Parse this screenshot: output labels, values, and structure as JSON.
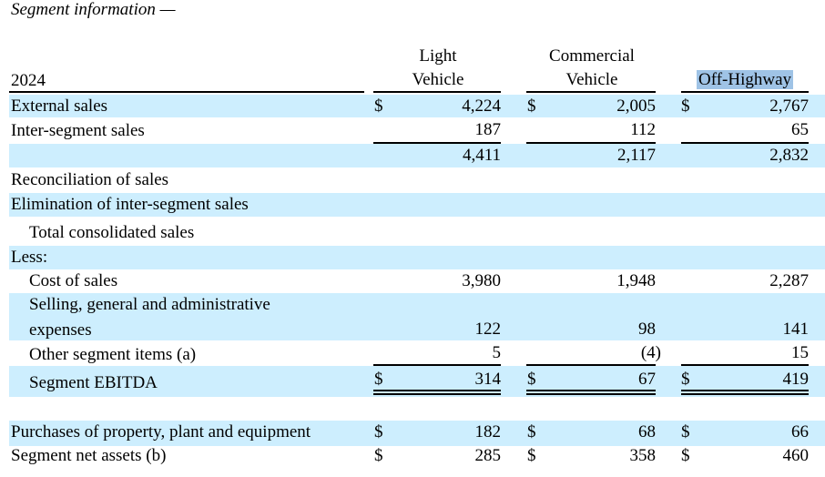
{
  "title": "Segment information —",
  "year": "2024",
  "columns": [
    {
      "line1": "Light",
      "line2": "Vehicle"
    },
    {
      "line1": "Commercial",
      "line2": "Vehicle"
    },
    {
      "line1": "",
      "line2": "Off-Highway"
    }
  ],
  "currency": "$",
  "rows": {
    "external_sales": {
      "label": "External sales",
      "values": [
        "4,224",
        "2,005",
        "2,767"
      ]
    },
    "inter_segment_sales": {
      "label": "Inter-segment sales",
      "values": [
        "187",
        "112",
        "65"
      ]
    },
    "subtotal": {
      "values": [
        "4,411",
        "2,117",
        "2,832"
      ]
    },
    "reconciliation": {
      "label": "Reconciliation of sales"
    },
    "elimination": {
      "label": "Elimination of inter-segment sales"
    },
    "total_consolidated": {
      "label": "Total consolidated sales"
    },
    "less": {
      "label": "Less:"
    },
    "cost_of_sales": {
      "label": "Cost of sales",
      "values": [
        "3,980",
        "1,948",
        "2,287"
      ]
    },
    "sga": {
      "label_line1": "Selling, general and administrative",
      "label_line2": "expenses",
      "values": [
        "122",
        "98",
        "141"
      ]
    },
    "other_items": {
      "label": "Other segment items (a)",
      "values": [
        "5",
        "(4)",
        "15"
      ]
    },
    "ebitda": {
      "label": "Segment EBITDA",
      "values": [
        "314",
        "67",
        "419"
      ]
    },
    "purchases": {
      "label": "Purchases of property, plant and equipment",
      "values": [
        "182",
        "68",
        "66"
      ]
    },
    "net_assets": {
      "label": "Segment net assets (b)",
      "values": [
        "285",
        "358",
        "460"
      ]
    }
  }
}
